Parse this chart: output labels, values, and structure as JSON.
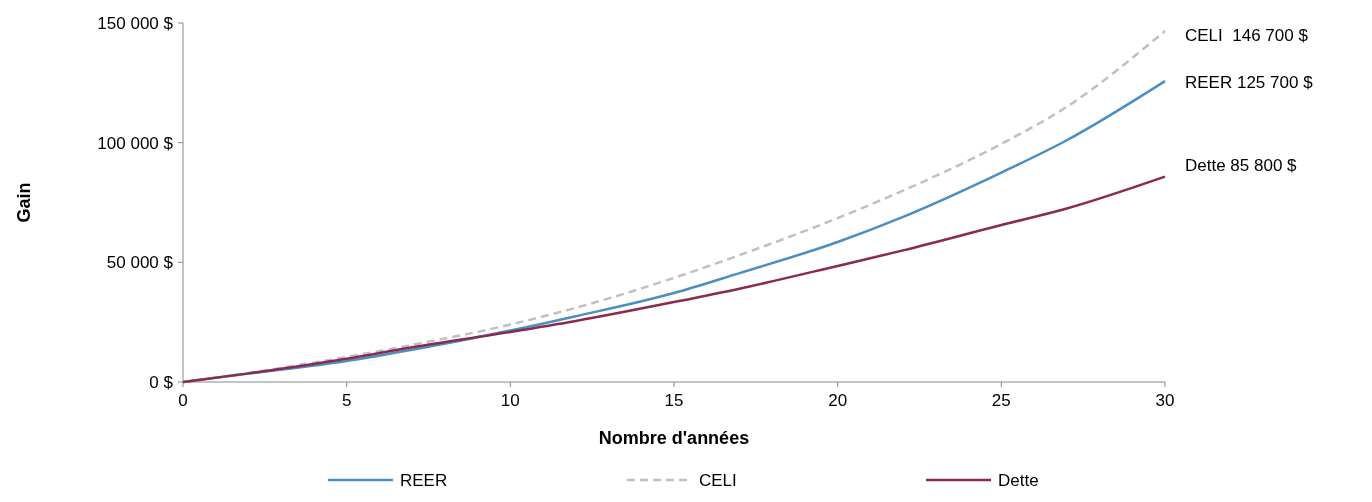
{
  "chart_data": {
    "type": "line",
    "xlabel": "Nombre d'années",
    "ylabel": "Gain",
    "x": [
      0,
      2,
      5,
      7,
      10,
      12,
      15,
      17,
      20,
      22,
      25,
      27,
      30
    ],
    "xlim": [
      0,
      30
    ],
    "xticks": [
      0,
      5,
      10,
      15,
      20,
      25,
      30
    ],
    "ylim": [
      0,
      150000
    ],
    "yticks": [
      {
        "value": 0,
        "label": "0 $"
      },
      {
        "value": 50000,
        "label": "50 000 $"
      },
      {
        "value": 100000,
        "label": "100 000 $"
      },
      {
        "value": 150000,
        "label": "150 000 $"
      }
    ],
    "grid": false,
    "legend": "bottom",
    "marker": "none",
    "series": [
      {
        "name": "REER",
        "color": "#4a8ec2",
        "line_style": "solid",
        "values": [
          0,
          3500,
          8800,
          13500,
          21500,
          27500,
          37200,
          45500,
          58500,
          69000,
          87500,
          101000,
          125700
        ]
      },
      {
        "name": "CELI",
        "color": "#c0c0c0",
        "line_style": "dashed",
        "values": [
          0,
          3800,
          10500,
          15500,
          24000,
          31000,
          43500,
          53000,
          68500,
          80000,
          99500,
          115000,
          146700
        ]
      },
      {
        "name": "Dette",
        "color": "#8b2a4e",
        "line_style": "solid",
        "values": [
          0,
          3600,
          9700,
          14500,
          20900,
          25500,
          33400,
          39000,
          48500,
          55000,
          65600,
          72500,
          85800
        ]
      }
    ],
    "annotations": [
      "CELI  146 700 $",
      "REER 125 700 $",
      "Dette 85 800 $"
    ]
  }
}
